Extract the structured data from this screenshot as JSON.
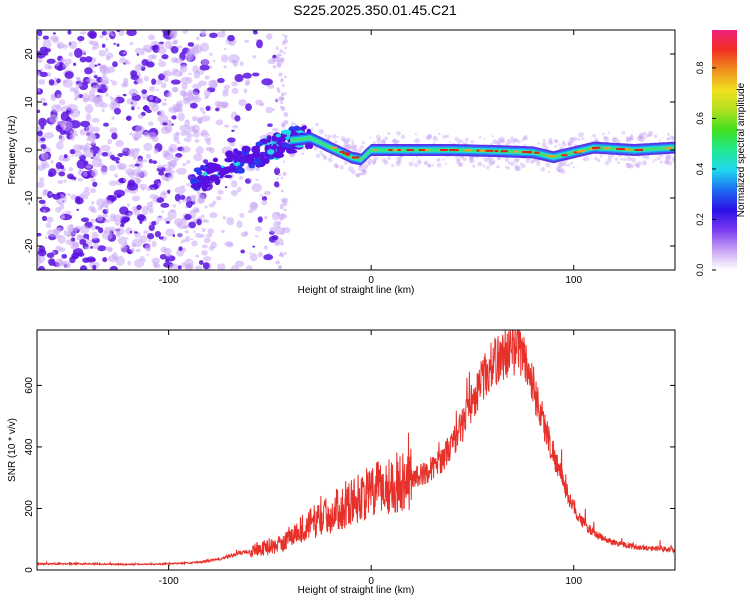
{
  "title": "S225.2025.350.01.45.C21",
  "colors": {
    "signal": "#e8302a",
    "purple_dark": "#5a10e0",
    "purple_light": "#c9a6f5",
    "ridge_red": "#e02010",
    "ridge_green": "#3ee07a",
    "ridge_cyan": "#20d8e8",
    "background": "#ffffff",
    "frame": "#000000"
  },
  "chart_data": [
    {
      "type": "heatmap",
      "panel": "spectrogram",
      "xlabel": "Height of straight line (km)",
      "ylabel": "Frequency (Hz)",
      "xlim": [
        -165,
        150
      ],
      "ylim": [
        -25,
        25
      ],
      "x_ticks": [
        "-100",
        "0",
        "100"
      ],
      "x_tick_values": [
        -100,
        0,
        100
      ],
      "y_ticks": [
        "-20",
        "-10",
        "0",
        "10",
        "20"
      ],
      "y_tick_values": [
        -20,
        -10,
        0,
        10,
        20
      ],
      "ridge": {
        "x": [
          -85,
          -70,
          -55,
          -40,
          -30,
          -20,
          -10,
          -5,
          0,
          20,
          40,
          60,
          80,
          90,
          100,
          110,
          130,
          150
        ],
        "frequency_hz": [
          -6,
          -3,
          -1,
          2,
          2.5,
          0.5,
          -1.5,
          -2,
          0,
          0,
          0,
          -0.2,
          -0.5,
          -1.5,
          -0.5,
          0.5,
          0,
          0.5
        ]
      },
      "colorbar": {
        "label": "Normalized spectral amplitude",
        "range": [
          0,
          0.95
        ],
        "ticks": [
          "0.0",
          "0.2",
          "0.4",
          "0.6",
          "0.8"
        ],
        "tick_values": [
          0,
          0.2,
          0.4,
          0.6,
          0.8
        ],
        "colors": [
          "#ffffff",
          "#c8a2f4",
          "#7a3af0",
          "#2a10e8",
          "#1e6cf0",
          "#20d8f0",
          "#20e890",
          "#40e020",
          "#b0e020",
          "#f0e020",
          "#f09020",
          "#f03020",
          "#f02080"
        ]
      }
    },
    {
      "type": "line",
      "panel": "snr",
      "xlabel": "Height of straight line (km)",
      "ylabel": "SNR (10 * v/v)",
      "xlim": [
        -165,
        150
      ],
      "ylim": [
        0,
        780
      ],
      "x_ticks": [
        "-100",
        "0",
        "100"
      ],
      "x_tick_values": [
        -100,
        0,
        100
      ],
      "y_ticks": [
        "0",
        "200",
        "400",
        "600"
      ],
      "y_tick_values": [
        0,
        200,
        400,
        600
      ],
      "series": [
        {
          "x": [
            -165,
            -140,
            -120,
            -100,
            -85,
            -75,
            -65,
            -55,
            -45,
            -40,
            -35,
            -30,
            -25,
            -20,
            -15,
            -10,
            -5,
            0,
            5,
            10,
            15,
            20,
            25,
            30,
            35,
            40,
            45,
            50,
            55,
            60,
            65,
            70,
            72,
            75,
            80,
            85,
            90,
            95,
            100,
            105,
            110,
            115,
            120,
            130,
            140,
            150
          ],
          "values": [
            20,
            20,
            18,
            20,
            25,
            35,
            55,
            70,
            80,
            110,
            130,
            150,
            170,
            180,
            200,
            220,
            240,
            250,
            270,
            275,
            290,
            300,
            310,
            330,
            360,
            410,
            470,
            550,
            620,
            670,
            700,
            710,
            740,
            700,
            600,
            480,
            380,
            280,
            200,
            150,
            120,
            100,
            90,
            75,
            70,
            65
          ]
        }
      ]
    }
  ]
}
